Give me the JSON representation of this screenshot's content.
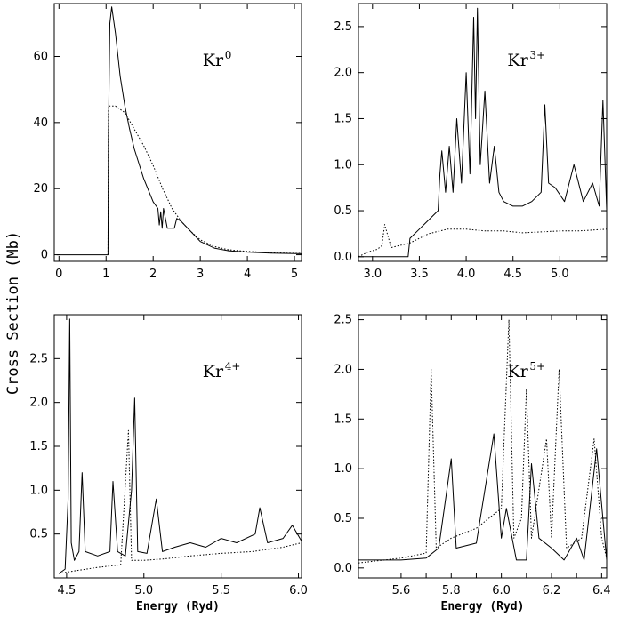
{
  "ylabel": "Cross Section (Mb)",
  "chart_data": [
    {
      "type": "line",
      "panel": "top-left",
      "annotation": {
        "base": "Kr",
        "sup": "0"
      },
      "xlabel": "",
      "xlim": [
        -0.1,
        5.15
      ],
      "ylim": [
        -2,
        76
      ],
      "xticks": [
        0,
        1,
        2,
        3,
        4,
        5
      ],
      "xtick_labels": [
        "0",
        "1",
        "2",
        "3",
        "4",
        "5"
      ],
      "yticks": [
        0,
        20,
        40,
        60
      ],
      "ytick_labels": [
        "0",
        "20",
        "40",
        "60"
      ],
      "series": [
        {
          "name": "solid",
          "style": "solid",
          "x": [
            -0.05,
            1.04,
            1.05,
            1.08,
            1.12,
            1.2,
            1.3,
            1.4,
            1.5,
            1.6,
            1.8,
            2.0,
            2.1,
            2.13,
            2.16,
            2.19,
            2.22,
            2.3,
            2.45,
            2.5,
            2.6,
            2.8,
            3.0,
            3.3,
            3.6,
            4.0,
            4.5,
            5.15
          ],
          "y": [
            0,
            0,
            36,
            70,
            75,
            67,
            54,
            45,
            38,
            32,
            23,
            16,
            14,
            9,
            13,
            8,
            14,
            8,
            8,
            11,
            10,
            7,
            4,
            2,
            1.2,
            0.8,
            0.5,
            0.3
          ]
        },
        {
          "name": "dotted",
          "style": "dotted",
          "x": [
            1.04,
            1.05,
            1.2,
            1.4,
            1.6,
            1.8,
            2.0,
            2.2,
            2.4,
            2.6,
            2.8,
            3.0,
            3.3,
            3.6,
            4.0,
            4.5,
            5.15
          ],
          "y": [
            0,
            45,
            45,
            43,
            38,
            33,
            27,
            20,
            14,
            10,
            7,
            4.5,
            2.5,
            1.5,
            1,
            0.6,
            0.4
          ]
        }
      ]
    },
    {
      "type": "line",
      "panel": "top-right",
      "annotation": {
        "base": "Kr",
        "sup": "3+"
      },
      "xlabel": "",
      "xlim": [
        2.85,
        5.5
      ],
      "ylim": [
        -0.05,
        2.75
      ],
      "xticks": [
        3.0,
        3.5,
        4.0,
        4.5,
        5.0
      ],
      "xtick_labels": [
        "3.0",
        "3.5",
        "4.0",
        "4.5",
        "5.0"
      ],
      "yticks": [
        0.0,
        0.5,
        1.0,
        1.5,
        2.0,
        2.5
      ],
      "ytick_labels": [
        "0.0",
        "0.5",
        "1.0",
        "1.5",
        "2.0",
        "2.5"
      ],
      "series": [
        {
          "name": "solid",
          "style": "solid",
          "x": [
            2.85,
            3.38,
            3.4,
            3.5,
            3.6,
            3.7,
            3.72,
            3.74,
            3.78,
            3.82,
            3.86,
            3.9,
            3.95,
            4.0,
            4.04,
            4.08,
            4.1,
            4.12,
            4.15,
            4.2,
            4.25,
            4.3,
            4.35,
            4.4,
            4.5,
            4.6,
            4.7,
            4.8,
            4.84,
            4.88,
            4.95,
            5.05,
            5.15,
            5.25,
            5.35,
            5.42,
            5.46,
            5.5
          ],
          "y": [
            0,
            0,
            0.2,
            0.3,
            0.4,
            0.5,
            0.9,
            1.15,
            0.7,
            1.2,
            0.7,
            1.5,
            0.8,
            2.0,
            0.9,
            2.6,
            1.5,
            2.7,
            1.0,
            1.8,
            0.8,
            1.2,
            0.7,
            0.6,
            0.55,
            0.55,
            0.6,
            0.7,
            1.65,
            0.8,
            0.75,
            0.6,
            1.0,
            0.6,
            0.8,
            0.55,
            1.7,
            0.5
          ]
        },
        {
          "name": "dotted",
          "style": "dotted",
          "x": [
            2.85,
            2.95,
            3.05,
            3.1,
            3.13,
            3.2,
            3.4,
            3.6,
            3.8,
            4.0,
            4.2,
            4.4,
            4.6,
            4.8,
            5.0,
            5.2,
            5.5
          ],
          "y": [
            0,
            0.05,
            0.08,
            0.12,
            0.35,
            0.1,
            0.15,
            0.25,
            0.3,
            0.3,
            0.28,
            0.28,
            0.26,
            0.27,
            0.28,
            0.28,
            0.3
          ]
        }
      ]
    },
    {
      "type": "line",
      "panel": "bottom-left",
      "annotation": {
        "base": "Kr",
        "sup": "4+"
      },
      "xlabel": "Energy (Ryd)",
      "xlim": [
        4.42,
        6.02
      ],
      "ylim": [
        0,
        3.0
      ],
      "xticks": [
        4.5,
        5.0,
        5.5,
        6.0
      ],
      "xtick_labels": [
        "4.5",
        "5.0",
        "5.5",
        "6.0"
      ],
      "yticks": [
        0.5,
        1.0,
        1.5,
        2.0,
        2.5
      ],
      "ytick_labels": [
        "0.5",
        "1.0",
        "1.5",
        "2.0",
        "2.5"
      ],
      "series": [
        {
          "name": "solid",
          "style": "solid",
          "x": [
            4.45,
            4.49,
            4.51,
            4.52,
            4.53,
            4.55,
            4.58,
            4.6,
            4.62,
            4.7,
            4.78,
            4.8,
            4.83,
            4.88,
            4.92,
            4.94,
            4.96,
            5.02,
            5.08,
            5.12,
            5.2,
            5.3,
            5.4,
            5.5,
            5.6,
            5.72,
            5.75,
            5.8,
            5.9,
            5.96,
            6.02
          ],
          "y": [
            0.05,
            0.1,
            0.9,
            2.95,
            0.4,
            0.2,
            0.3,
            1.2,
            0.3,
            0.25,
            0.3,
            1.1,
            0.3,
            0.25,
            1.0,
            2.05,
            0.3,
            0.28,
            0.9,
            0.3,
            0.35,
            0.4,
            0.35,
            0.45,
            0.4,
            0.5,
            0.8,
            0.4,
            0.45,
            0.6,
            0.42
          ]
        },
        {
          "name": "dotted",
          "style": "dotted",
          "x": [
            4.45,
            4.55,
            4.7,
            4.85,
            4.9,
            4.92,
            5.0,
            5.15,
            5.3,
            5.5,
            5.7,
            5.9,
            6.02
          ],
          "y": [
            0.05,
            0.08,
            0.12,
            0.15,
            1.68,
            0.2,
            0.2,
            0.22,
            0.25,
            0.28,
            0.3,
            0.35,
            0.4
          ]
        }
      ]
    },
    {
      "type": "line",
      "panel": "bottom-right",
      "annotation": {
        "base": "Kr",
        "sup": "5+"
      },
      "xlabel": "Energy (Ryd)",
      "xlim": [
        5.43,
        6.42
      ],
      "ylim": [
        -0.1,
        2.55
      ],
      "xticks": [
        5.6,
        5.7,
        5.8,
        5.9,
        6.0,
        6.1,
        6.2,
        6.3,
        6.4
      ],
      "xtick_labels": [
        "5.6",
        "",
        "5.8",
        "",
        "6.0",
        "",
        "6.2",
        "",
        "6.4"
      ],
      "yticks": [
        0.0,
        0.5,
        1.0,
        1.5,
        2.0,
        2.5
      ],
      "ytick_labels": [
        "0.0",
        "0.5",
        "1.0",
        "1.5",
        "2.0",
        "2.5"
      ],
      "series": [
        {
          "name": "solid",
          "style": "solid",
          "x": [
            5.43,
            5.6,
            5.7,
            5.75,
            5.8,
            5.82,
            5.9,
            5.97,
            6.0,
            6.02,
            6.06,
            6.1,
            6.12,
            6.15,
            6.2,
            6.25,
            6.3,
            6.33,
            6.38,
            6.42
          ],
          "y": [
            0.08,
            0.08,
            0.1,
            0.2,
            1.1,
            0.2,
            0.25,
            1.35,
            0.3,
            0.6,
            0.08,
            0.08,
            1.05,
            0.3,
            0.2,
            0.08,
            0.3,
            0.08,
            1.2,
            0.08
          ]
        },
        {
          "name": "dotted",
          "style": "dotted",
          "x": [
            5.43,
            5.6,
            5.7,
            5.72,
            5.74,
            5.8,
            5.9,
            6.0,
            6.03,
            6.05,
            6.08,
            6.1,
            6.12,
            6.18,
            6.2,
            6.23,
            6.26,
            6.32,
            6.37,
            6.4,
            6.42
          ],
          "y": [
            0.05,
            0.1,
            0.15,
            2.0,
            0.2,
            0.3,
            0.4,
            0.6,
            2.5,
            0.3,
            0.5,
            1.8,
            0.3,
            1.3,
            0.3,
            2.0,
            0.2,
            0.3,
            1.3,
            0.3,
            0.1
          ]
        }
      ]
    }
  ]
}
